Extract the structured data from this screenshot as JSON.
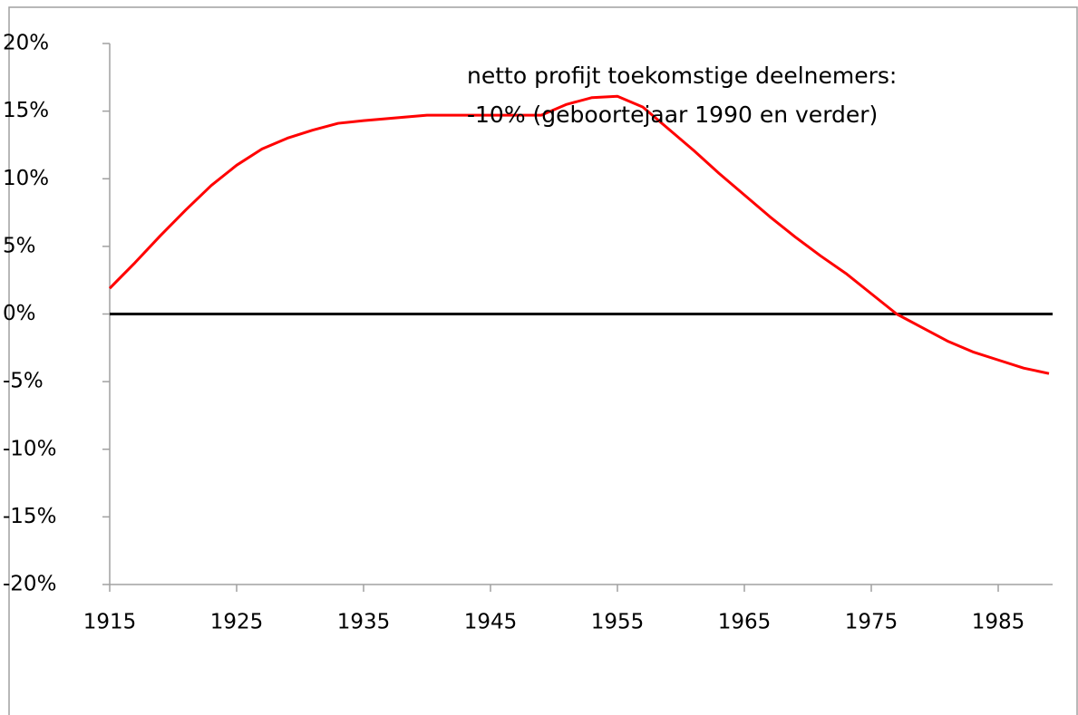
{
  "chart_data": {
    "type": "line",
    "annotations": [
      "netto profijt toekomstige deelnemers:",
      "-10% (geboortejaar 1990 en verder)"
    ],
    "x": [
      1915,
      1917,
      1919,
      1921,
      1923,
      1925,
      1927,
      1929,
      1931,
      1933,
      1935,
      1940,
      1945,
      1949,
      1951,
      1953,
      1955,
      1957,
      1959,
      1961,
      1963,
      1965,
      1967,
      1969,
      1971,
      1973,
      1975,
      1977,
      1979,
      1981,
      1983,
      1985,
      1987,
      1989
    ],
    "series": [
      {
        "color": "#ff0000",
        "values": [
          1.9,
          3.8,
          5.8,
          7.7,
          9.5,
          11.0,
          12.2,
          13.0,
          13.6,
          14.1,
          14.3,
          14.7,
          14.7,
          14.7,
          15.5,
          16.0,
          16.1,
          15.3,
          13.7,
          12.1,
          10.4,
          8.8,
          7.2,
          5.7,
          4.3,
          3.0,
          1.5,
          0.0,
          -1.0,
          -2.0,
          -2.8,
          -3.4,
          -4.0,
          -4.4
        ]
      }
    ],
    "xlim": [
      1915,
      1989
    ],
    "xticks": [
      1915,
      1925,
      1935,
      1945,
      1955,
      1965,
      1975,
      1985
    ],
    "ylim": [
      -20,
      20
    ],
    "yticks": [
      {
        "value": -20,
        "label": "-20%"
      },
      {
        "value": -15,
        "label": "-15%"
      },
      {
        "value": -10,
        "label": "-10%"
      },
      {
        "value": -5,
        "label": "-5%"
      },
      {
        "value": 0,
        "label": "0%"
      },
      {
        "value": 5,
        "label": "5%"
      },
      {
        "value": 10,
        "label": "10%"
      },
      {
        "value": 15,
        "label": "15%"
      },
      {
        "value": 20,
        "label": "20%"
      }
    ],
    "zero_line_color": "#000000"
  }
}
